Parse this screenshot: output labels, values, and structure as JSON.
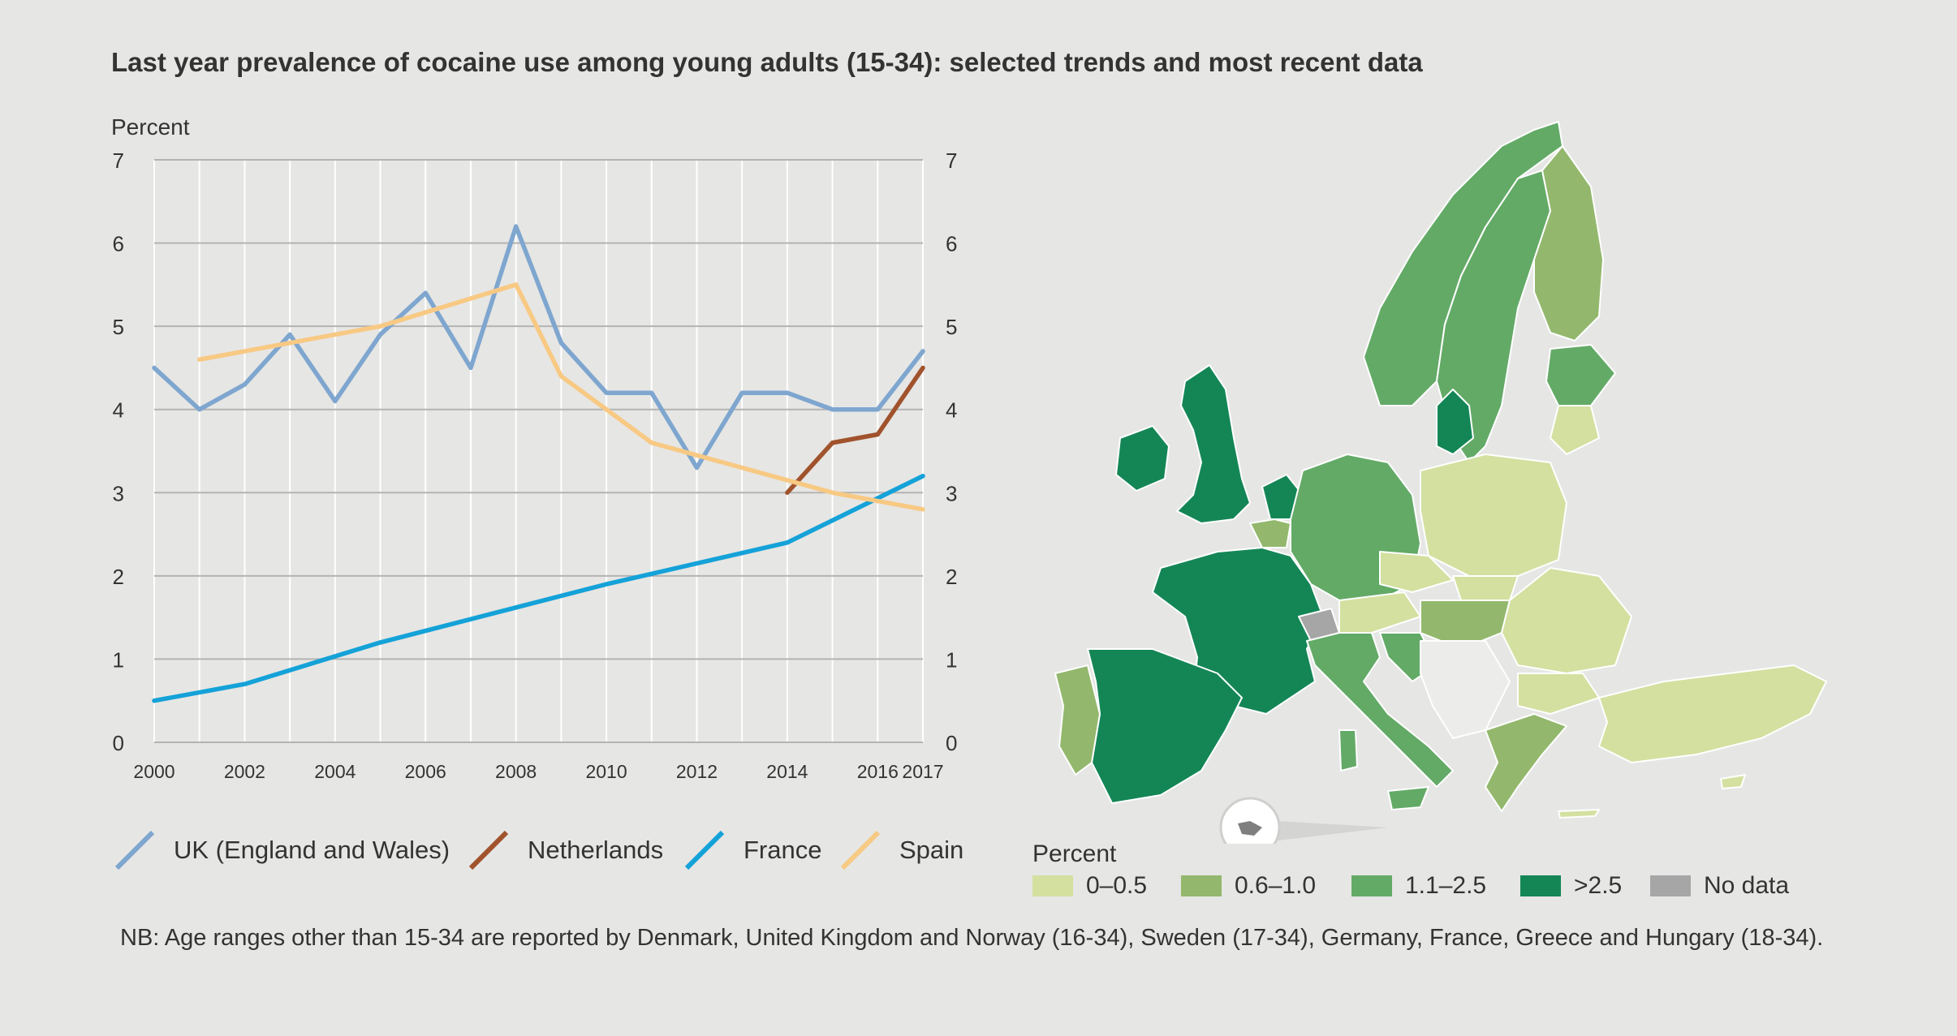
{
  "title": "Last year prevalence of cocaine use among young adults (15-34): selected trends and most recent data",
  "note": "NB: Age ranges other than 15-34 are reported by Denmark, United Kingdom and Norway (16-34), Sweden (17-34), Germany, France, Greece and Hungary (18-34).",
  "colors": {
    "uk": "#7ea6cf",
    "netherlands": "#a0532c",
    "france": "#14a2d8",
    "spain": "#f8c983",
    "grid": "#b3b3b3",
    "map_0_05": "#d3e0a0",
    "map_06_10": "#93b86d",
    "map_11_25": "#63aa67",
    "map_gt25": "#148656",
    "map_nodata": "#a6a6a6"
  },
  "chart_data": {
    "type": "line",
    "ylabel": "Percent",
    "ylim": [
      0,
      7
    ],
    "yticks": [
      0,
      1,
      2,
      3,
      4,
      5,
      6,
      7
    ],
    "xlim": [
      2000,
      2017
    ],
    "xticks": [
      2000,
      2002,
      2004,
      2006,
      2008,
      2010,
      2012,
      2014,
      2016,
      2017
    ],
    "grid": true,
    "series": [
      {
        "name": "UK (England and Wales)",
        "color_key": "uk",
        "x": [
          2000,
          2001,
          2002,
          2003,
          2004,
          2005,
          2006,
          2007,
          2008,
          2009,
          2010,
          2011,
          2012,
          2013,
          2014,
          2015,
          2016,
          2017
        ],
        "y": [
          4.5,
          4.0,
          4.3,
          4.9,
          4.1,
          4.9,
          5.4,
          4.5,
          6.2,
          4.8,
          4.2,
          4.2,
          3.3,
          4.2,
          4.2,
          4.0,
          4.0,
          4.7
        ]
      },
      {
        "name": "Netherlands",
        "color_key": "netherlands",
        "x": [
          2014,
          2015,
          2016,
          2017
        ],
        "y": [
          3.0,
          3.6,
          3.7,
          4.5
        ]
      },
      {
        "name": "France",
        "color_key": "france",
        "x": [
          2000,
          2002,
          2005,
          2010,
          2014,
          2017
        ],
        "y": [
          0.5,
          0.7,
          1.2,
          1.9,
          2.4,
          3.2
        ]
      },
      {
        "name": "Spain",
        "color_key": "spain",
        "x": [
          2001,
          2003,
          2005,
          2008,
          2009,
          2011,
          2013,
          2015,
          2017
        ],
        "y": [
          4.6,
          4.8,
          5.0,
          5.5,
          4.4,
          3.6,
          3.3,
          3.0,
          2.8
        ]
      }
    ]
  },
  "legend": {
    "items": [
      "UK (England and Wales)",
      "Netherlands",
      "France",
      "Spain"
    ]
  },
  "map_legend": {
    "title": "Percent",
    "items": [
      {
        "label": "0–0.5",
        "color_key": "map_0_05"
      },
      {
        "label": "0.6–1.0",
        "color_key": "map_06_10"
      },
      {
        "label": "1.1–2.5",
        "color_key": "map_11_25"
      },
      {
        "label": ">2.5",
        "color_key": "map_gt25"
      },
      {
        "label": "No data",
        "color_key": "map_nodata"
      }
    ]
  }
}
